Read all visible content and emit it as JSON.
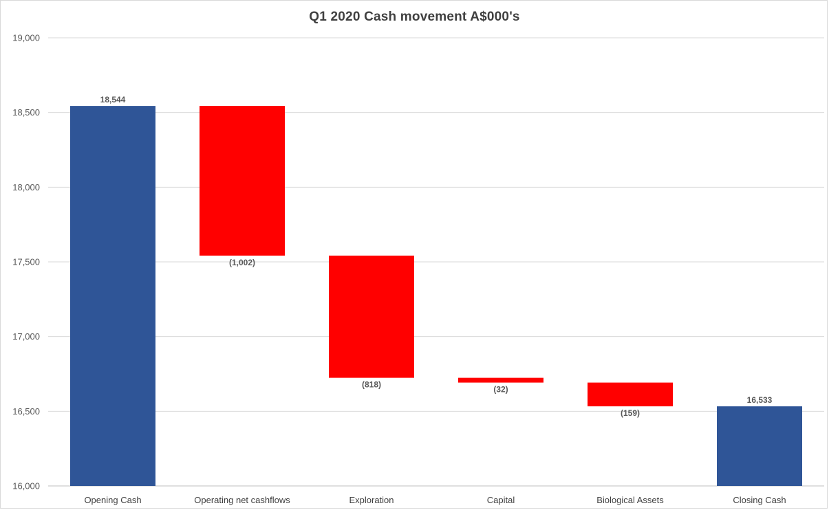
{
  "chart_data": {
    "type": "bar",
    "subtype": "waterfall",
    "title": "Q1 2020 Cash movement A$000's",
    "xlabel": "",
    "ylabel": "",
    "ylim": [
      16000,
      19000
    ],
    "yticks": [
      16000,
      16500,
      17000,
      17500,
      18000,
      18500,
      19000
    ],
    "ytick_labels": [
      "16,000",
      "16,500",
      "17,000",
      "17,500",
      "18,000",
      "18,500",
      "19,000"
    ],
    "grid": true,
    "legend": "none",
    "categories": [
      "Opening Cash",
      "Operating net cashflows",
      "Exploration",
      "Capital",
      "Biological Assets",
      "Closing Cash"
    ],
    "values": [
      18544,
      -1002,
      -818,
      -32,
      -159,
      16533
    ],
    "kinds": [
      "total",
      "delta",
      "delta",
      "delta",
      "delta",
      "total"
    ],
    "data_labels": [
      "18,544",
      "(1,002)",
      "(818)",
      "(32)",
      "(159)",
      "16,533"
    ],
    "colors": {
      "total": "#2f5597",
      "decrease": "#ff0000",
      "grid": "#d9d9d9",
      "axis": "#bfbfbf"
    }
  }
}
